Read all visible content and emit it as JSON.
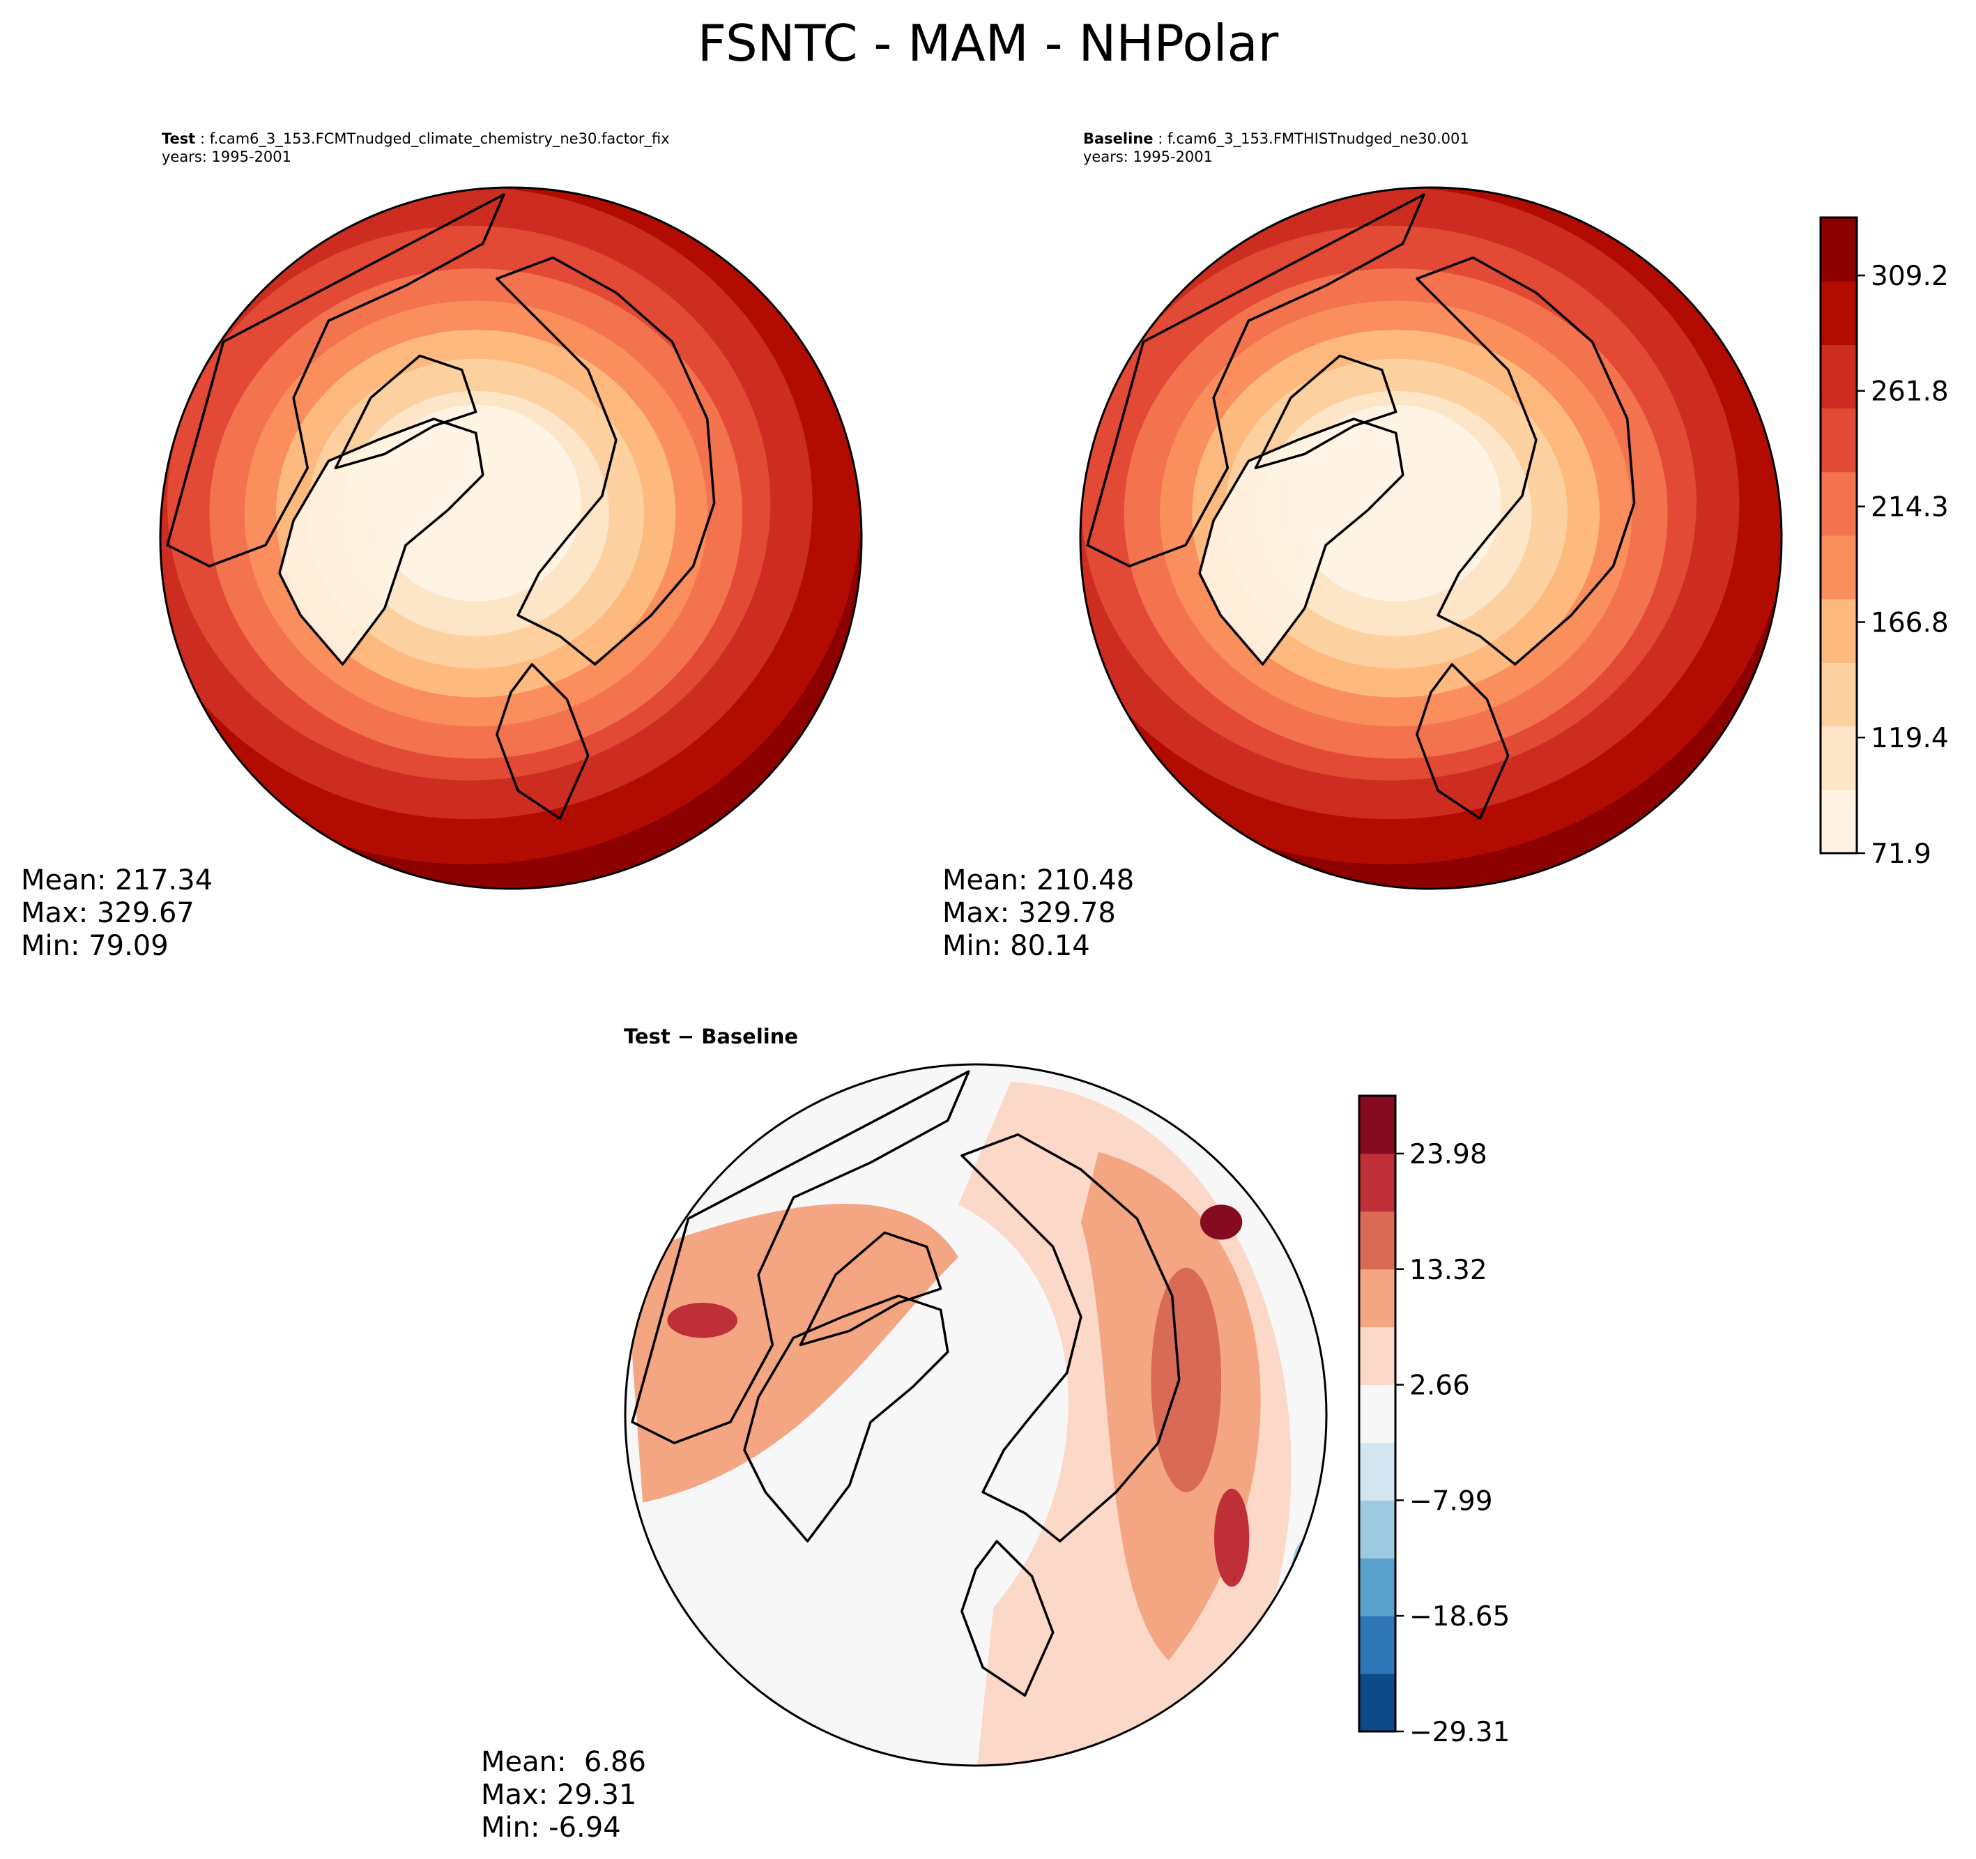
{
  "figure": {
    "title": "FSNTC - MAM - NHPolar"
  },
  "panels": {
    "test": {
      "label_bold": "Test",
      "label_sep": " : ",
      "case": "f.cam6_3_153.FCMTnudged_climate_chemistry_ne30.factor_fix",
      "years": "years: 1995-2001",
      "stats": {
        "mean": "Mean: 217.34",
        "max": "Max: 329.67",
        "min": "Min: 79.09"
      }
    },
    "baseline": {
      "label_bold": "Baseline",
      "label_sep": " : ",
      "case": "f.cam6_3_153.FMTHISTnudged_ne30.001",
      "years": "years: 1995-2001",
      "stats": {
        "mean": "Mean: 210.48",
        "max": "Max: 329.78",
        "min": "Min: 80.14"
      }
    },
    "diff": {
      "title": "Test − Baseline",
      "stats": {
        "mean": "Mean:  6.86",
        "max": "Max: 29.31",
        "min": "Min: -6.94"
      }
    }
  },
  "colors": {
    "abs_levels": [
      "#fff4e4",
      "#fde5c7",
      "#fdd0a0",
      "#fdb97e",
      "#fa8e5d",
      "#f3734f",
      "#e24a35",
      "#cd2d20",
      "#b20c02",
      "#8d0000"
    ],
    "diff_levels": [
      "#0c4a88",
      "#2f76b6",
      "#5aa1cd",
      "#9ecae1",
      "#d2e5f0",
      "#f7f7f7",
      "#fbd8c7",
      "#f4a582",
      "#d96a56",
      "#bf2f38",
      "#860b20"
    ],
    "land_outline": "#000000"
  },
  "chart_data": [
    {
      "type": "heatmap",
      "panel": "test",
      "projection": "North polar stereographic",
      "variable": "FSNTC",
      "season": "MAM",
      "units_range": [
        71.9,
        333.0
      ],
      "mean": 217.34,
      "max": 329.67,
      "min": 79.09
    },
    {
      "type": "heatmap",
      "panel": "baseline",
      "projection": "North polar stereographic",
      "variable": "FSNTC",
      "season": "MAM",
      "mean": 210.48,
      "max": 329.78,
      "min": 80.14
    },
    {
      "type": "heatmap",
      "panel": "diff",
      "projection": "North polar stereographic",
      "mean": 6.86,
      "max": 29.31,
      "min": -6.94
    }
  ],
  "colorbars": {
    "absolute": {
      "range": [
        71.9,
        333.0
      ],
      "ticks": [
        71.9,
        119.4,
        166.8,
        214.3,
        261.8,
        309.2
      ],
      "tick_labels": [
        "71.9",
        "119.4",
        "166.8",
        "214.3",
        "261.8",
        "309.2"
      ]
    },
    "diff": {
      "range": [
        -29.31,
        29.31
      ],
      "ticks": [
        -29.31,
        -18.65,
        -7.99,
        2.66,
        13.32,
        23.98
      ],
      "tick_labels": [
        "−29.31",
        "−18.65",
        "−7.99",
        "2.66",
        "13.32",
        "23.98"
      ]
    }
  }
}
